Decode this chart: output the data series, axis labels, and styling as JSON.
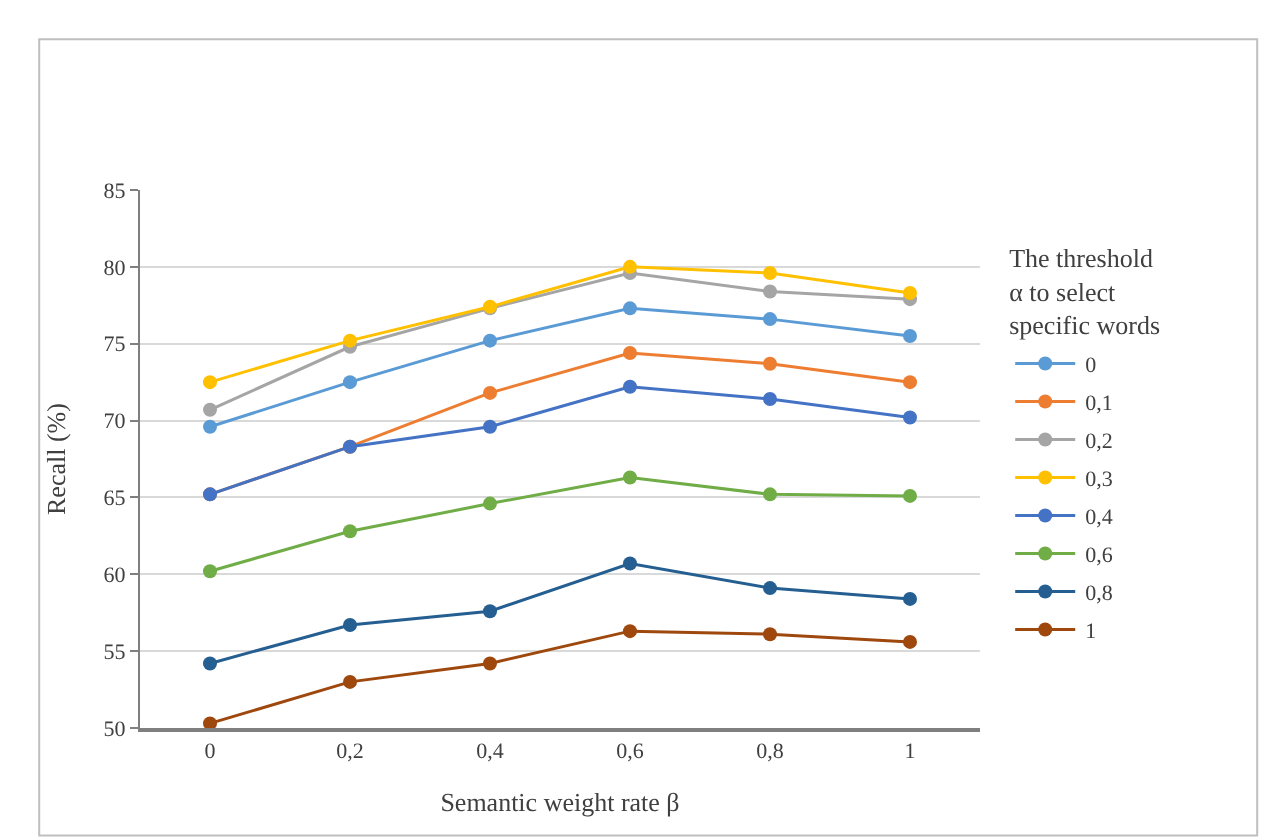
{
  "chart_data": {
    "type": "line",
    "xlabel": "Semantic weight rate β",
    "ylabel": "Recall (%)",
    "legend_title": "The threshold\nα to select\nspecific words",
    "categories": [
      "0",
      "0,2",
      "0,4",
      "0,6",
      "0,8",
      "1"
    ],
    "series": [
      {
        "name": "0",
        "color": "#5b9bd5",
        "values": [
          69.6,
          72.5,
          75.2,
          77.3,
          76.6,
          75.5
        ]
      },
      {
        "name": "0,1",
        "color": "#ed7d31",
        "values": [
          65.2,
          68.3,
          71.8,
          74.4,
          73.7,
          72.5
        ]
      },
      {
        "name": "0,2",
        "color": "#a5a5a5",
        "values": [
          70.7,
          74.8,
          77.3,
          79.6,
          78.4,
          77.9
        ]
      },
      {
        "name": "0,3",
        "color": "#ffc000",
        "values": [
          72.5,
          75.2,
          77.4,
          80.0,
          79.6,
          78.3
        ]
      },
      {
        "name": "0,4",
        "color": "#4472c4",
        "values": [
          65.2,
          68.3,
          69.6,
          72.2,
          71.4,
          70.2
        ]
      },
      {
        "name": "0,6",
        "color": "#70ad47",
        "values": [
          60.2,
          62.8,
          64.6,
          66.3,
          65.2,
          65.1
        ]
      },
      {
        "name": "0,8",
        "color": "#255e91",
        "values": [
          54.2,
          56.7,
          57.6,
          60.7,
          59.1,
          58.4
        ]
      },
      {
        "name": "1",
        "color": "#9e480e",
        "values": [
          50.3,
          53.0,
          54.2,
          56.3,
          56.1,
          55.6
        ]
      }
    ],
    "ylim": [
      50,
      85
    ],
    "yticks": [
      50,
      55,
      60,
      65,
      70,
      75,
      80,
      85
    ],
    "grid": "y",
    "legend": "right",
    "marker": "circle",
    "line_style": "solid"
  }
}
